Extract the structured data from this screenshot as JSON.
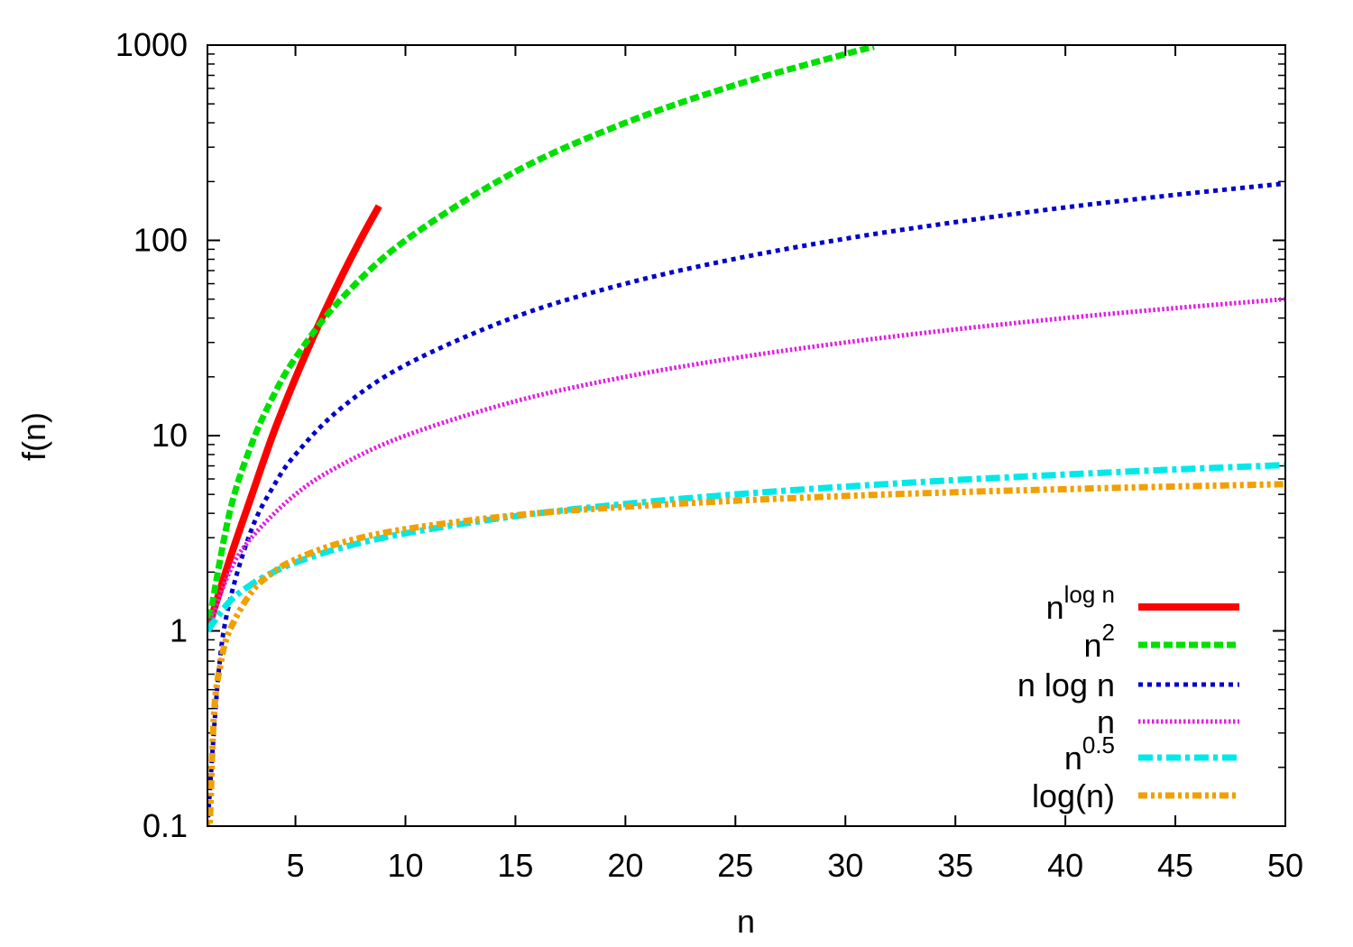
{
  "chart_data": {
    "type": "line",
    "title": "",
    "xlabel": "n",
    "ylabel": "f(n)",
    "xlim": [
      1,
      50
    ],
    "ylim": [
      0.1,
      1000
    ],
    "yscale": "log",
    "grid": false,
    "legend_position": "bottom-right",
    "x_ticks": [
      "5",
      "10",
      "15",
      "20",
      "25",
      "30",
      "35",
      "40",
      "45",
      "50"
    ],
    "y_ticks": [
      "0.1",
      "1",
      "10",
      "100",
      "1000"
    ],
    "series": [
      {
        "name": "n^{log n}",
        "label_base": "n",
        "label_sup": "log n",
        "color": "#ff0000",
        "style": "solid",
        "x": [
          1,
          2,
          3,
          4,
          5,
          6,
          7,
          8,
          8.8
        ],
        "y": [
          1,
          2.3,
          4.9,
          10.3,
          19.7,
          35.8,
          62,
          103,
          150
        ]
      },
      {
        "name": "n^2",
        "label_base": "n",
        "label_sup": "2",
        "color": "#00e000",
        "style": "dashed",
        "x": [
          1,
          2,
          3,
          4,
          5,
          7,
          10,
          15,
          20,
          25,
          30,
          31.3
        ],
        "y": [
          1,
          4,
          9,
          16,
          25,
          49,
          100,
          225,
          400,
          625,
          900,
          980
        ]
      },
      {
        "name": "n log n",
        "label_base": "n log n",
        "label_sup": "",
        "color": "#0000c8",
        "style": "dotted",
        "x": [
          1,
          1.5,
          2,
          3,
          4,
          5,
          7,
          10,
          15,
          20,
          25,
          30,
          35,
          40,
          45,
          50
        ],
        "y": [
          0.1,
          0.6,
          1.4,
          3.3,
          5.5,
          8.0,
          13.6,
          23,
          40.6,
          60,
          80.5,
          102,
          124,
          147.5,
          171,
          195.6
        ]
      },
      {
        "name": "n",
        "label_base": "n",
        "label_sup": "",
        "color": "#e020e0",
        "style": "dotted-fine",
        "x": [
          1,
          2,
          3,
          5,
          7,
          10,
          15,
          20,
          25,
          30,
          35,
          40,
          45,
          50
        ],
        "y": [
          1,
          2,
          3,
          5,
          7,
          10,
          15,
          20,
          25,
          30,
          35,
          40,
          45,
          50
        ]
      },
      {
        "name": "n^{0.5}",
        "label_base": "n",
        "label_sup": "0.5",
        "color": "#00e8e8",
        "style": "dash-dot",
        "x": [
          1,
          2,
          3,
          4,
          5,
          7,
          10,
          15,
          20,
          25,
          30,
          35,
          40,
          45,
          50
        ],
        "y": [
          1,
          1.41,
          1.73,
          2,
          2.24,
          2.65,
          3.16,
          3.87,
          4.47,
          5,
          5.48,
          5.92,
          6.32,
          6.71,
          7.07
        ]
      },
      {
        "name": "log(n)",
        "label_base": "log(n)",
        "label_sup": "",
        "color": "#f0a000",
        "style": "dash-dot-dot",
        "x": [
          1,
          1.1,
          1.3,
          1.6,
          2,
          3,
          4,
          5,
          7,
          10,
          15,
          20,
          25,
          30,
          35,
          40,
          45,
          50
        ],
        "y": [
          0.1,
          0.1,
          0.38,
          0.68,
          1,
          1.58,
          2,
          2.32,
          2.81,
          3.32,
          3.91,
          4.32,
          4.64,
          4.91,
          5.13,
          5.32,
          5.49,
          5.64
        ]
      }
    ]
  }
}
